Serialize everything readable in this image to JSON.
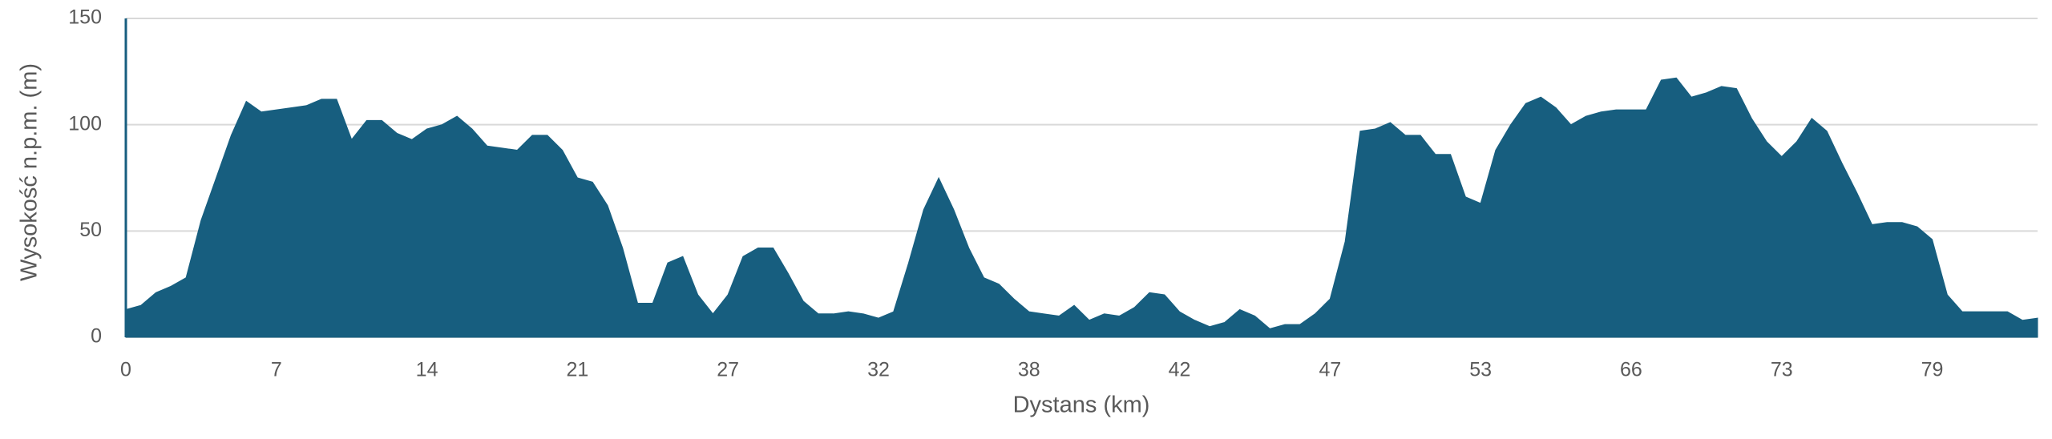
{
  "chart_data": {
    "type": "area",
    "y_axis_label": "Wysokość n.p.m. (m)",
    "x_axis_label": "Dystans (km)",
    "color": "#175e7f",
    "grid": true,
    "ylim": [
      0,
      150
    ],
    "yticks": [
      0,
      50,
      100,
      150
    ],
    "categories": [
      "0",
      null,
      null,
      null,
      null,
      null,
      null,
      null,
      null,
      null,
      "7",
      null,
      null,
      null,
      null,
      null,
      null,
      null,
      null,
      null,
      "14",
      null,
      null,
      null,
      null,
      null,
      null,
      null,
      null,
      null,
      "21",
      null,
      null,
      null,
      null,
      null,
      null,
      null,
      null,
      null,
      "27",
      null,
      null,
      null,
      null,
      null,
      null,
      null,
      null,
      null,
      "32",
      null,
      null,
      null,
      null,
      null,
      null,
      null,
      null,
      null,
      "38",
      null,
      null,
      null,
      null,
      null,
      null,
      null,
      null,
      null,
      "42",
      null,
      null,
      null,
      null,
      null,
      null,
      null,
      null,
      null,
      "47",
      null,
      null,
      null,
      null,
      null,
      null,
      null,
      null,
      null,
      "53",
      null,
      null,
      null,
      null,
      null,
      null,
      null,
      null,
      null,
      "66",
      null,
      null,
      null,
      null,
      null,
      null,
      null,
      null,
      null,
      "73",
      null,
      null,
      null,
      null,
      null,
      null,
      null,
      null,
      null,
      "79",
      null,
      null,
      null,
      null,
      null,
      null,
      null
    ],
    "values": [
      13,
      15,
      21,
      24,
      28,
      55,
      75,
      95,
      111,
      106,
      107,
      108,
      109,
      112,
      112,
      93,
      102,
      102,
      96,
      93,
      98,
      100,
      104,
      98,
      90,
      89,
      88,
      95,
      95,
      88,
      75,
      73,
      62,
      42,
      16,
      16,
      35,
      38,
      20,
      11,
      20,
      38,
      42,
      42,
      30,
      17,
      11,
      11,
      12,
      11,
      9,
      12,
      35,
      60,
      75,
      60,
      42,
      28,
      25,
      18,
      12,
      11,
      10,
      15,
      8,
      11,
      10,
      14,
      21,
      20,
      12,
      8,
      5,
      7,
      13,
      10,
      4,
      6,
      6,
      11,
      18,
      45,
      97,
      98,
      101,
      95,
      95,
      86,
      86,
      66,
      63,
      88,
      100,
      110,
      113,
      108,
      100,
      104,
      106,
      107,
      107,
      107,
      121,
      122,
      113,
      115,
      118,
      117,
      103,
      92,
      85,
      92,
      103,
      97,
      82,
      68,
      53,
      54,
      54,
      52,
      46,
      20,
      12,
      12,
      12,
      12,
      8,
      9
    ]
  }
}
